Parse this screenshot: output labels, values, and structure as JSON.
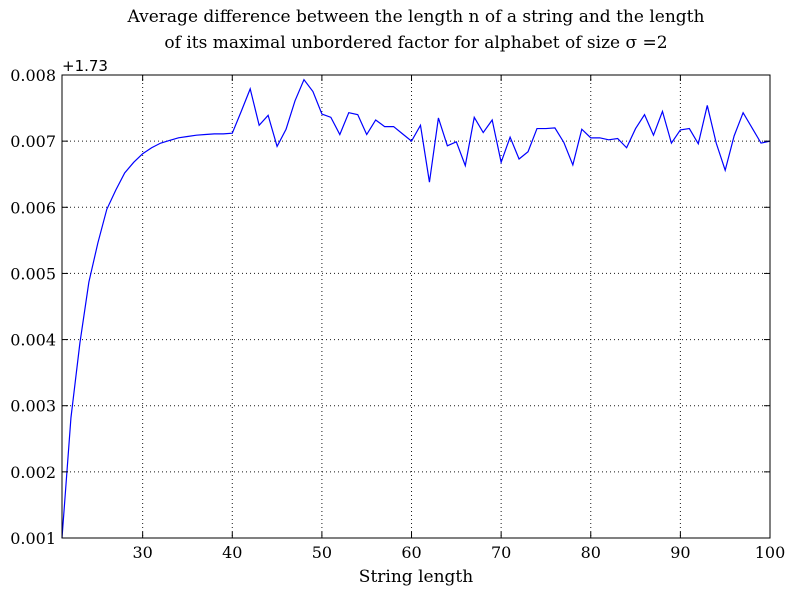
{
  "chart_data": {
    "type": "line",
    "title_line1": "Average difference between the length n of a string and the length",
    "title_line2": "of its maximal unbordered factor for alphabet of size σ =2",
    "xlabel": "String length",
    "ylabel": "",
    "y_offset_label": "+1.73",
    "xlim": [
      21,
      100
    ],
    "ylim": [
      0.001,
      0.008
    ],
    "x_ticks": [
      30,
      40,
      50,
      60,
      70,
      80,
      90,
      100
    ],
    "y_ticks": [
      0.001,
      0.002,
      0.003,
      0.004,
      0.005,
      0.006,
      0.007,
      0.008
    ],
    "x_tick_labels": [
      "30",
      "40",
      "50",
      "60",
      "70",
      "80",
      "90",
      "100"
    ],
    "y_tick_labels": [
      "0.001",
      "0.002",
      "0.003",
      "0.004",
      "0.005",
      "0.006",
      "0.007",
      "0.008"
    ],
    "grid": true,
    "line_color": "#0000ff",
    "series": [
      {
        "x": [
          21,
          22,
          23,
          24,
          25,
          26,
          27,
          28,
          29,
          30,
          31,
          32,
          33,
          34,
          35,
          36,
          37,
          38,
          39,
          40,
          41,
          42,
          43,
          44,
          45,
          46,
          47,
          48,
          49,
          50,
          51,
          52,
          53,
          54,
          55,
          56,
          57,
          58,
          59,
          60,
          61,
          62,
          63,
          64,
          65,
          66,
          67,
          68,
          69,
          70,
          71,
          72,
          73,
          74,
          75,
          76,
          77,
          78,
          79,
          80,
          81,
          82,
          83,
          84,
          85,
          86,
          87,
          88,
          89,
          90,
          91,
          92,
          93,
          94,
          95,
          96,
          97,
          98,
          99,
          100
        ],
        "y": [
          0.001,
          0.00282,
          0.00395,
          0.00487,
          0.00546,
          0.00597,
          0.00626,
          0.00652,
          0.00668,
          0.00681,
          0.0069,
          0.00697,
          0.00701,
          0.00705,
          0.00707,
          0.00709,
          0.0071,
          0.00711,
          0.00711,
          0.00712,
          0.00745,
          0.00779,
          0.00724,
          0.00739,
          0.00692,
          0.00718,
          0.00761,
          0.00793,
          0.00775,
          0.00741,
          0.00736,
          0.0071,
          0.00743,
          0.0074,
          0.0071,
          0.00732,
          0.00722,
          0.00722,
          0.00711,
          0.007,
          0.00724,
          0.00638,
          0.00735,
          0.00693,
          0.00699,
          0.00663,
          0.00736,
          0.00713,
          0.00732,
          0.00668,
          0.00706,
          0.00673,
          0.00684,
          0.00719,
          0.00719,
          0.0072,
          0.00698,
          0.00664,
          0.00718,
          0.00705,
          0.00705,
          0.00702,
          0.00704,
          0.0069,
          0.00719,
          0.0074,
          0.00709,
          0.00745,
          0.00697,
          0.00717,
          0.00719,
          0.00696,
          0.00754,
          0.00697,
          0.00656,
          0.00708,
          0.00743,
          0.0072,
          0.00697,
          0.007
        ]
      }
    ]
  }
}
